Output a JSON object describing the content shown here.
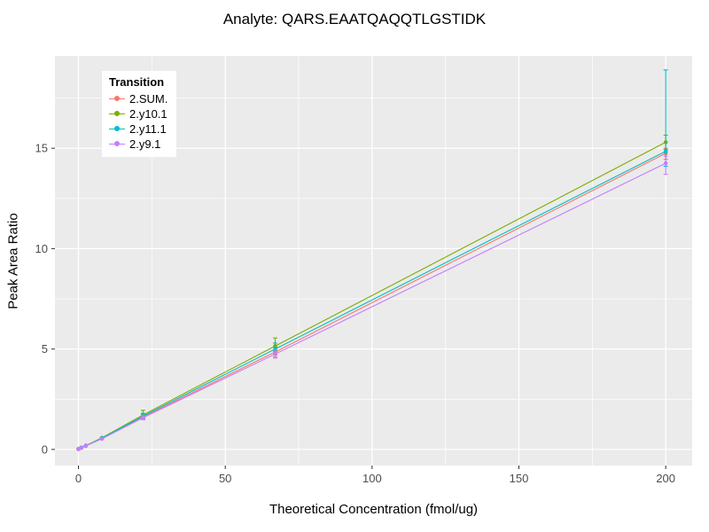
{
  "title": "Analyte: QARS.EAATQAQQTLGSTIDK",
  "chart_data": {
    "type": "line",
    "title": "Analyte: QARS.EAATQAQQTLGSTIDK",
    "xlabel": "Theoretical Concentration (fmol/ug)",
    "ylabel": "Peak Area Ratio",
    "xlim": [
      -8,
      209
    ],
    "ylim": [
      -0.8,
      19.6
    ],
    "x_ticks_major": [
      0,
      50,
      100,
      150,
      200
    ],
    "x_ticks_minor": [
      25,
      75,
      125,
      175
    ],
    "y_ticks_major": [
      0,
      5,
      10,
      15
    ],
    "y_ticks_minor": [
      2.5,
      7.5,
      12.5,
      17.5
    ],
    "grid": true,
    "panel_bg": "#EBEBEB",
    "grid_color": "#FFFFFF",
    "tick_label_color": "#4D4D4D",
    "tick_mark_color": "#333333",
    "legend_title": "Transition",
    "legend_position": "top-left-inside",
    "x": [
      0,
      1,
      2.5,
      8,
      22,
      67,
      200
    ],
    "series": [
      {
        "name": "2.SUM.",
        "color": "#F8766D",
        "values": [
          0.02,
          0.09,
          0.18,
          0.55,
          1.62,
          4.85,
          14.75
        ],
        "err_lo": [
          0.02,
          0.09,
          0.18,
          0.55,
          1.5,
          4.6,
          14.45
        ],
        "err_hi": [
          0.02,
          0.09,
          0.18,
          0.55,
          1.75,
          5.1,
          15.0
        ]
      },
      {
        "name": "2.y10.1",
        "color": "#7CAE00",
        "values": [
          0.02,
          0.09,
          0.19,
          0.58,
          1.72,
          5.15,
          15.3
        ],
        "err_lo": [
          0.02,
          0.09,
          0.19,
          0.58,
          1.55,
          4.9,
          14.95
        ],
        "err_hi": [
          0.02,
          0.09,
          0.19,
          0.58,
          1.95,
          5.55,
          15.65
        ]
      },
      {
        "name": "2.y11.1",
        "color": "#00BFC4",
        "values": [
          0.02,
          0.09,
          0.18,
          0.56,
          1.66,
          5.0,
          14.85
        ],
        "err_lo": [
          0.02,
          0.09,
          0.18,
          0.56,
          1.52,
          4.7,
          14.1
        ],
        "err_hi": [
          0.02,
          0.09,
          0.18,
          0.56,
          1.8,
          5.3,
          18.9
        ]
      },
      {
        "name": "2.y9.1",
        "color": "#C77CFF",
        "values": [
          0.02,
          0.08,
          0.17,
          0.53,
          1.58,
          4.75,
          14.25
        ],
        "err_lo": [
          0.02,
          0.08,
          0.17,
          0.53,
          1.48,
          4.55,
          13.7
        ],
        "err_hi": [
          0.02,
          0.08,
          0.17,
          0.53,
          1.68,
          4.95,
          14.6
        ]
      }
    ]
  }
}
